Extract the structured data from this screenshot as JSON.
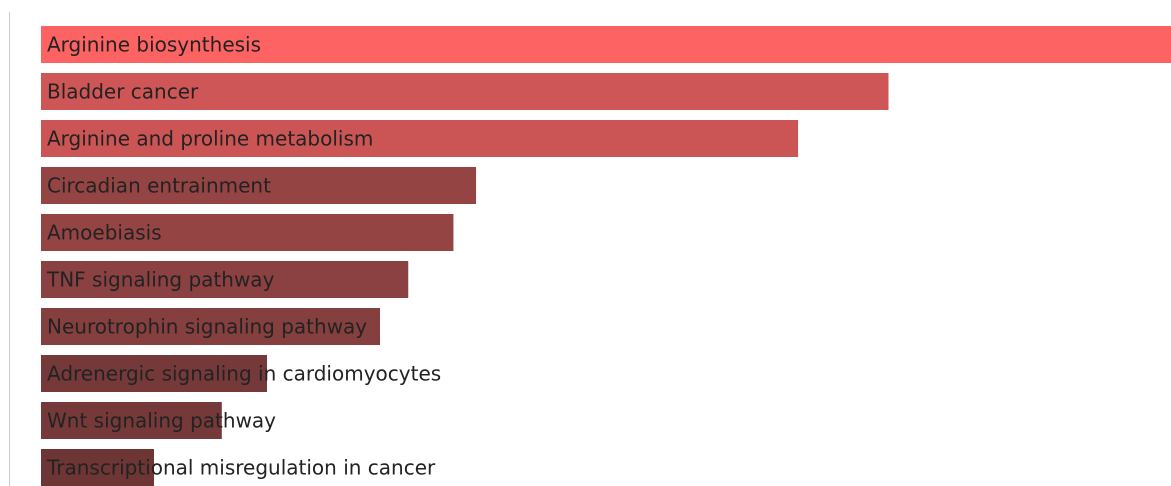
{
  "chart_data": {
    "type": "bar",
    "orientation": "horizontal",
    "title": "",
    "xlabel": "",
    "ylabel": "",
    "categories": [
      "Arginine biosynthesis",
      "Bladder cancer",
      "Arginine and proline metabolism",
      "Circadian entrainment",
      "Amoebiasis",
      "TNF signaling pathway",
      "Neurotrophin signaling pathway",
      "Adrenergic signaling in cardiomyocytes",
      "Wnt signaling pathway",
      "Transcriptional misregulation in cancer"
    ],
    "values": [
      1.0,
      0.75,
      0.67,
      0.385,
      0.365,
      0.325,
      0.3,
      0.2,
      0.16,
      0.1
    ],
    "xlim": [
      0,
      1.0
    ],
    "colors": [
      "#fe6363",
      "#cf5656",
      "#cb5555",
      "#954444",
      "#954444",
      "#8b4141",
      "#853f3f",
      "#763939",
      "#763939",
      "#6e3535"
    ],
    "axis_line_color": "#cccccc",
    "grid": false,
    "legend": "none"
  }
}
